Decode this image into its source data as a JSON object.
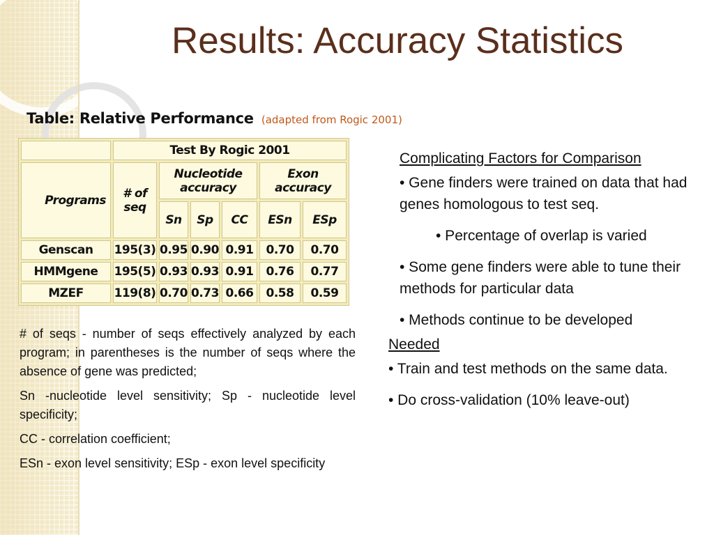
{
  "slide": {
    "title": "Results: Accuracy Statistics",
    "caption": {
      "main": "Table: Relative Performance",
      "sub": "(adapted from Rogic 2001)"
    },
    "table": {
      "top_header": "Test By Rogic 2001",
      "col_programs": "Programs",
      "col_seq": "# of seq",
      "group_nucleotide": "Nucleotide accuracy",
      "group_exon": "Exon accuracy",
      "sub_headers": [
        "Sn",
        "Sp",
        "CC",
        "ESn",
        "ESp"
      ],
      "rows": [
        {
          "program": "Genscan",
          "seq": "195(3)",
          "values": [
            "0.95",
            "0.90",
            "0.91",
            "0.70",
            "0.70"
          ]
        },
        {
          "program": "HMMgene",
          "seq": "195(5)",
          "values": [
            "0.93",
            "0.93",
            "0.91",
            "0.76",
            "0.77"
          ]
        },
        {
          "program": "MZEF",
          "seq": "119(8)",
          "values": [
            "0.70",
            "0.73",
            "0.66",
            "0.58",
            "0.59"
          ]
        }
      ]
    },
    "notes": [
      "# of seqs - number of seqs effectively analyzed by each program; in parentheses is the number of seqs where the absence of gene was predicted;",
      "Sn -nucleotide level sensitivity; Sp - nucleotide level specificity;",
      "CC - correlation coefficient;",
      "ESn - exon level sensitivity; ESp - exon level specificity"
    ],
    "right": {
      "heading1": "Complicating Factors for Comparison",
      "bullets1": [
        "• Gene finders were trained on data that had genes homologous to test seq.",
        "• Percentage of overlap is varied",
        "• Some gene finders were able to tune their methods for particular data",
        "• Methods continue to be developed"
      ],
      "heading2": "Needed",
      "bullets2": [
        "• Train and test methods on the same data.",
        "• Do cross-validation (10% leave-out)"
      ]
    }
  }
}
